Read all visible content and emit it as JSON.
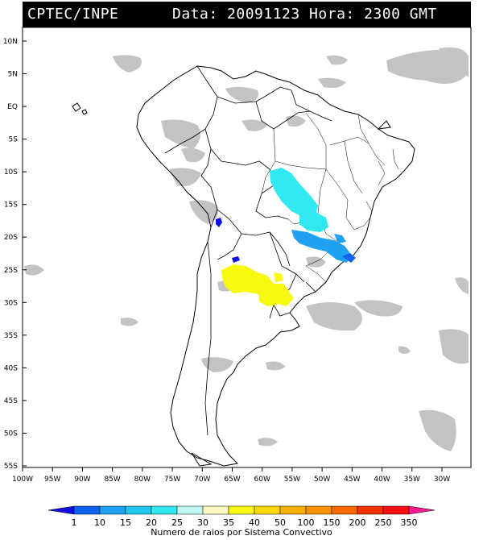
{
  "header": {
    "source": "CPTEC/INPE",
    "date_time": "Data: 20091123 Hora: 2300 GMT"
  },
  "map": {
    "lat_labels": [
      "10N",
      "5N",
      "EQ",
      "5S",
      "10S",
      "15S",
      "20S",
      "25S",
      "30S",
      "35S",
      "40S",
      "45S",
      "50S",
      "55S"
    ],
    "lon_labels": [
      "100W",
      "95W",
      "90W",
      "85W",
      "80W",
      "75W",
      "70W",
      "65W",
      "60W",
      "55W",
      "50W",
      "45W",
      "40W",
      "35W",
      "30W"
    ],
    "cloud_color": "#bdbdbd",
    "coast_color": "#000000"
  },
  "colorbar": {
    "values": [
      "1",
      "10",
      "15",
      "20",
      "25",
      "30",
      "35",
      "40",
      "50",
      "100",
      "150",
      "200",
      "250",
      "350"
    ],
    "colors": [
      "#1010e0",
      "#1060f0",
      "#20a0f0",
      "#20c8f0",
      "#30e8f0",
      "#c0f8f0",
      "#f8f8c0",
      "#f8f810",
      "#f8d800",
      "#f8b000",
      "#f89000",
      "#f86800",
      "#f83000",
      "#f81010",
      "#f81890"
    ],
    "title": "Numero de raios por Sistema Convectivo"
  }
}
